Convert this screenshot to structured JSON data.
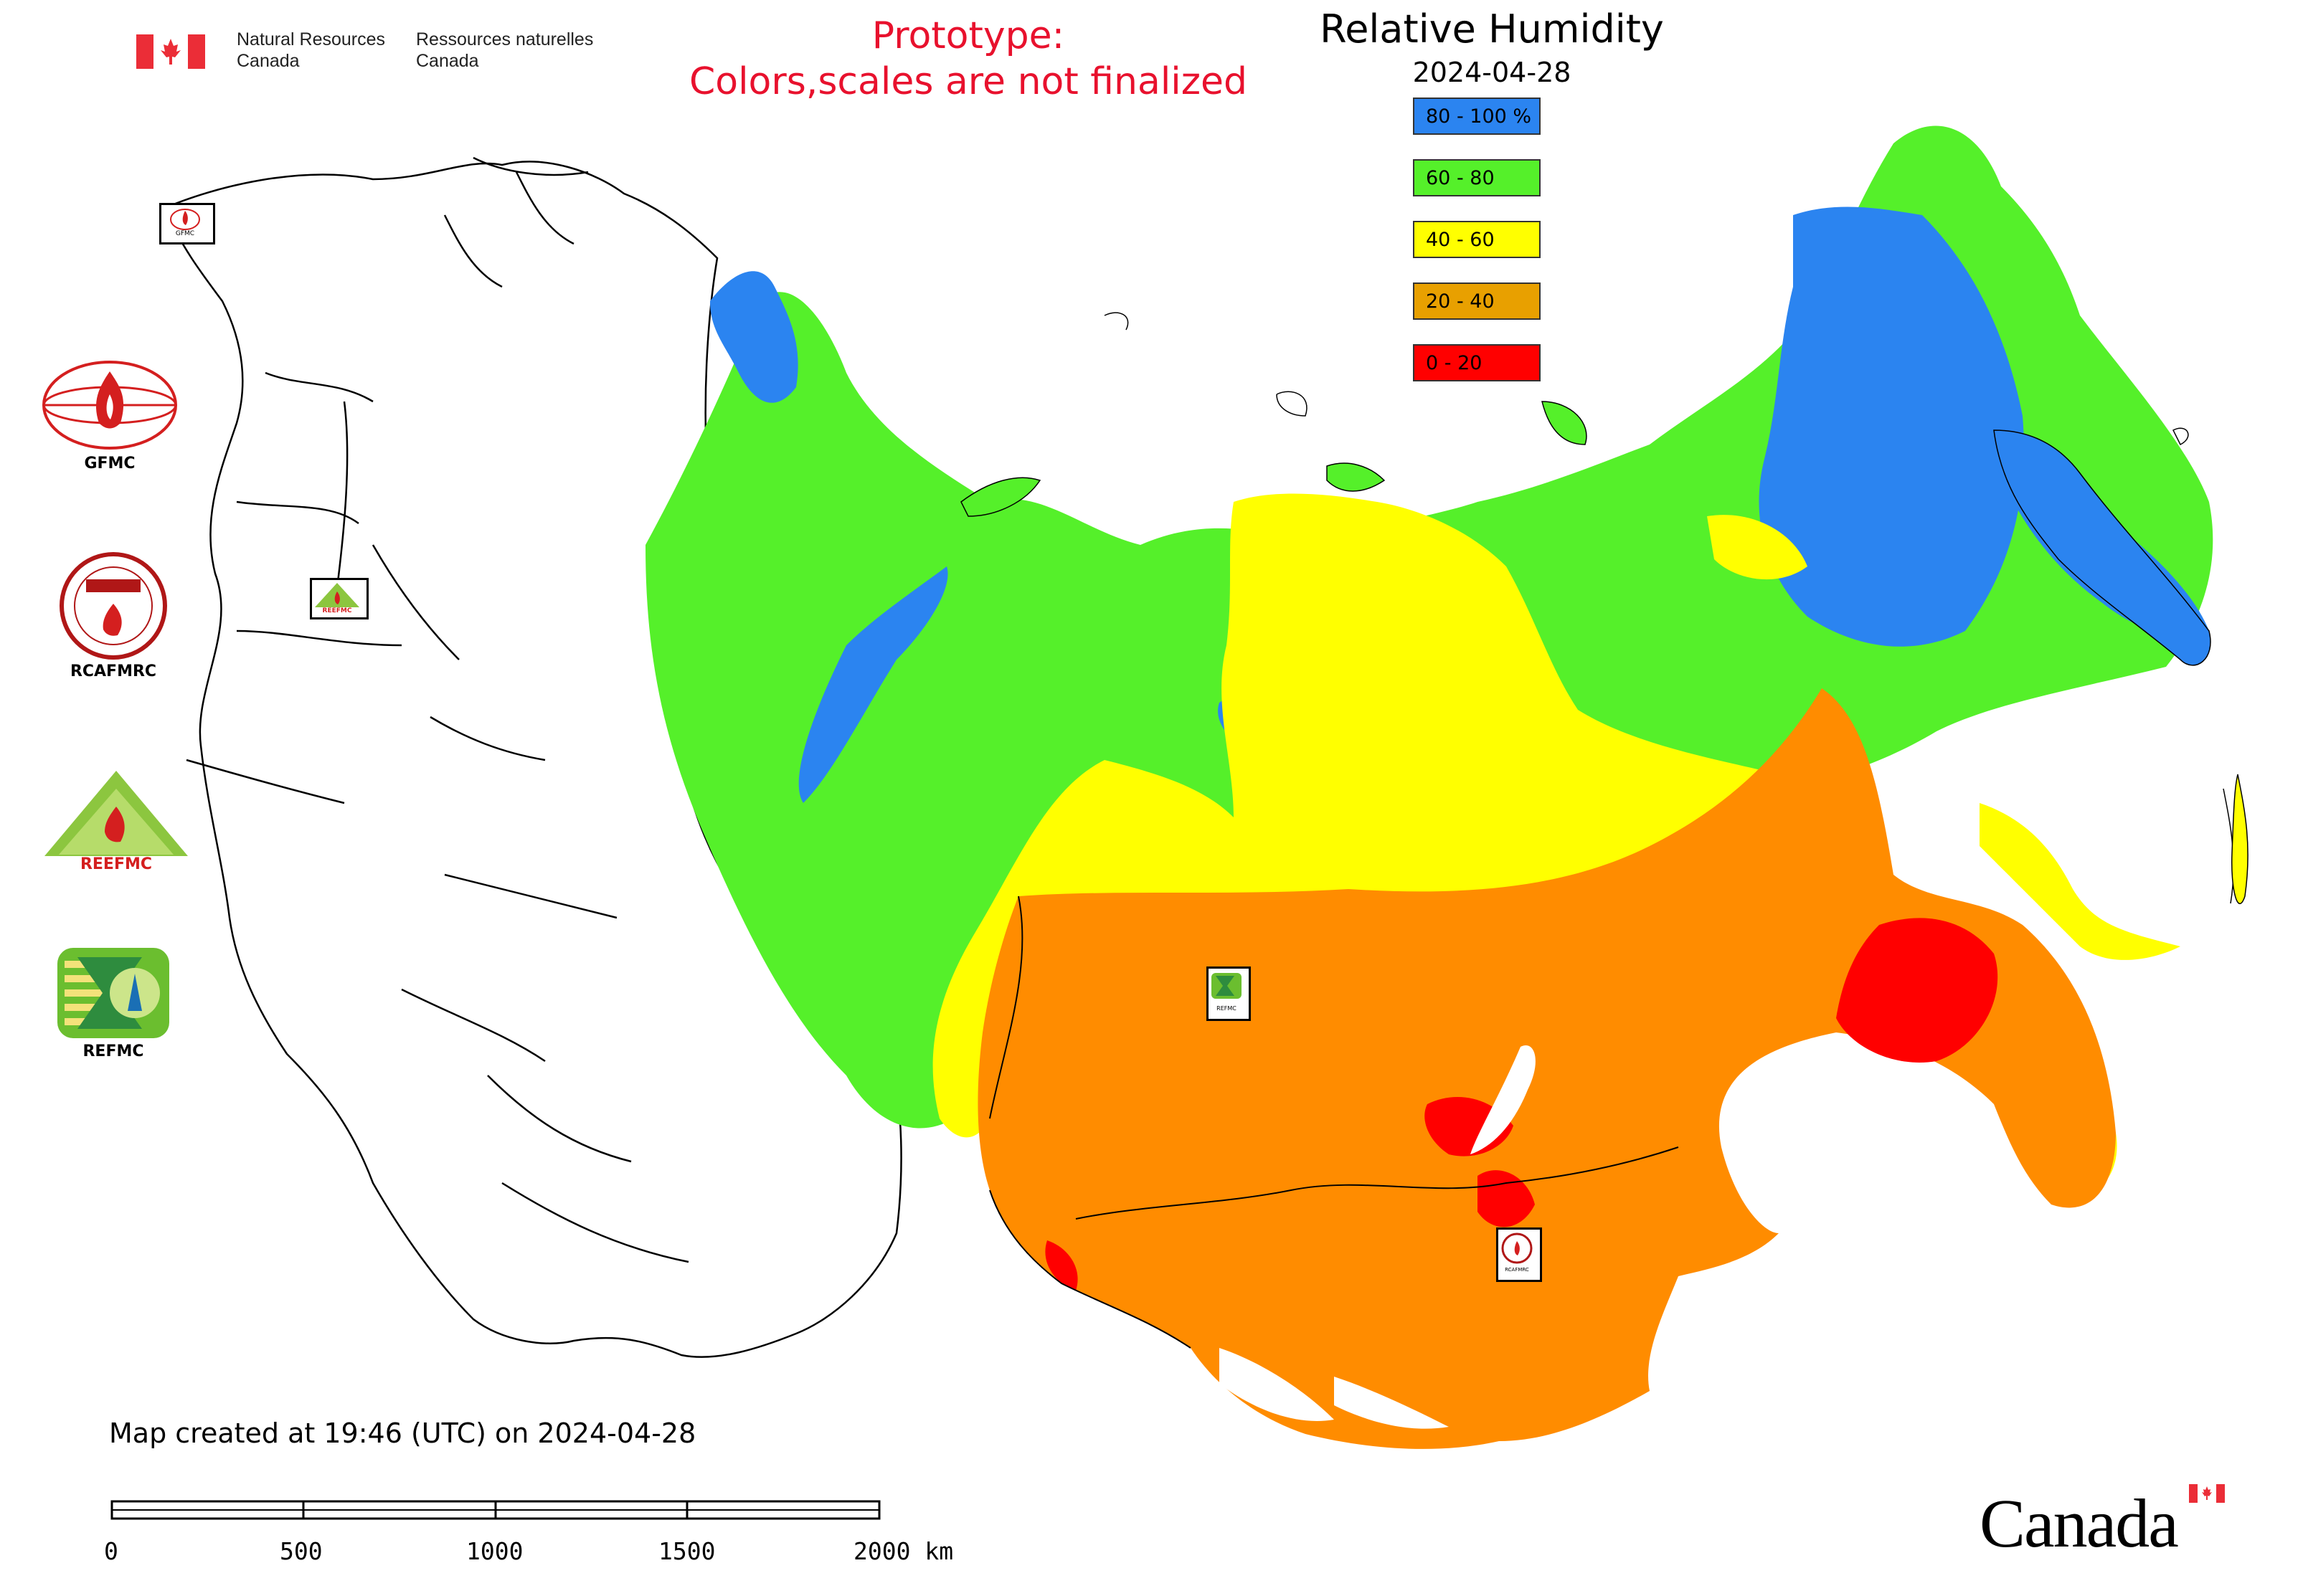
{
  "header": {
    "gov_en_line1": "Natural Resources",
    "gov_en_line2": "Canada",
    "gov_fr_line1": "Ressources naturelles",
    "gov_fr_line2": "Canada",
    "prototype_line1": "Prototype:",
    "prototype_line2": "Colors,scales are not finalized",
    "prototype_color": "#e8112d"
  },
  "map": {
    "title": "Relative Humidity",
    "date": "2024-04-28"
  },
  "legend": {
    "items": [
      {
        "label": "80 - 100 %",
        "color": "#2b84f0"
      },
      {
        "label": "60 - 80",
        "color": "#55f02a"
      },
      {
        "label": "40 - 60",
        "color": "#ffff00"
      },
      {
        "label": "20 - 40",
        "color": "#e8a000"
      },
      {
        "label": "0 - 20",
        "color": "#ff0000"
      }
    ]
  },
  "agencies": [
    {
      "name": "GFMC",
      "label": "GFMC"
    },
    {
      "name": "RCAFMRC",
      "label": "RCAFMRC"
    },
    {
      "name": "REEFMC",
      "label": "REEFMC"
    },
    {
      "name": "REFMC",
      "label": "REFMC"
    }
  ],
  "map_markers": {
    "gfmc_small": "GFMC",
    "reefmc_small": "REEFMC",
    "refmc_small": "REFMC",
    "rcafmrc_small": "RCAFMRC"
  },
  "footer": {
    "created_text": "Map created at 19:46 (UTC) on 2024-04-28",
    "scale_labels": [
      "0",
      "500",
      "1000",
      "1500",
      "2000 km"
    ],
    "wordmark": "Canada"
  },
  "colors": {
    "blue": "#2b84f0",
    "green": "#55f02a",
    "yellow": "#ffff00",
    "orange": "#ff8c00",
    "red": "#ff0000",
    "outline": "#000000",
    "canada_red": "#eb2d37"
  }
}
